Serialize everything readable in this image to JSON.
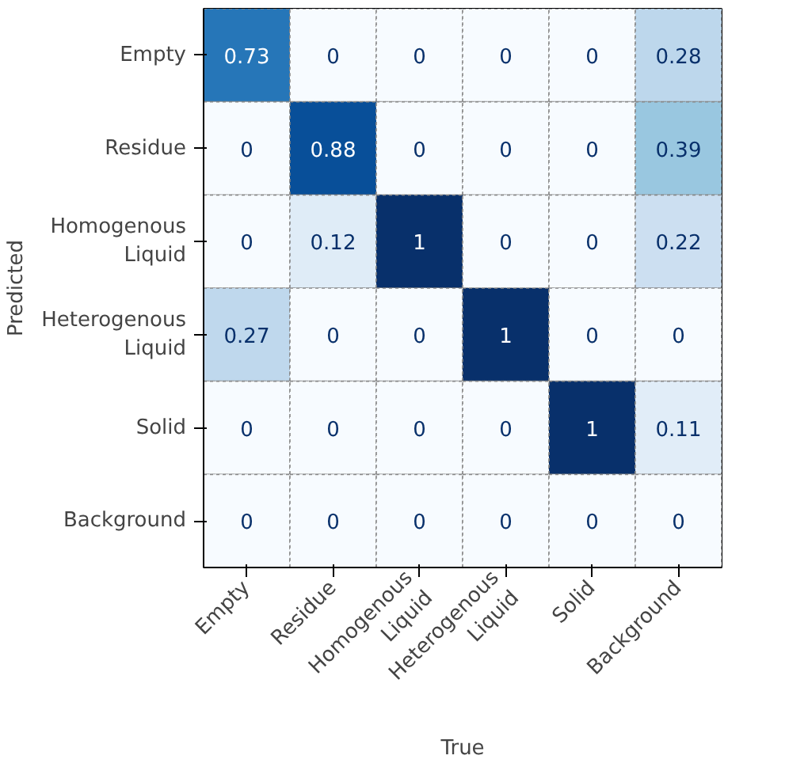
{
  "chart_data": {
    "type": "heatmap",
    "xlabel": "True",
    "ylabel": "Predicted",
    "categories": [
      "Empty",
      "Residue",
      "Homogenous\nLiquid",
      "Heterogenous\nLiquid",
      "Solid",
      "Background"
    ],
    "y_categories": [
      "Empty",
      "Residue",
      "Homogenous\nLiquid",
      "Heterogenous\nLiquid",
      "Solid",
      "Background"
    ],
    "cells": [
      [
        0.73,
        0,
        0,
        0,
        0,
        0.28
      ],
      [
        0,
        0.88,
        0,
        0,
        0,
        0.39
      ],
      [
        0,
        0.12,
        1,
        0,
        0,
        0.22
      ],
      [
        0.27,
        0,
        0,
        1,
        0,
        0
      ],
      [
        0,
        0,
        0,
        0,
        1,
        0.11
      ],
      [
        0,
        0,
        0,
        0,
        0,
        0
      ]
    ],
    "data_labels": true
  }
}
